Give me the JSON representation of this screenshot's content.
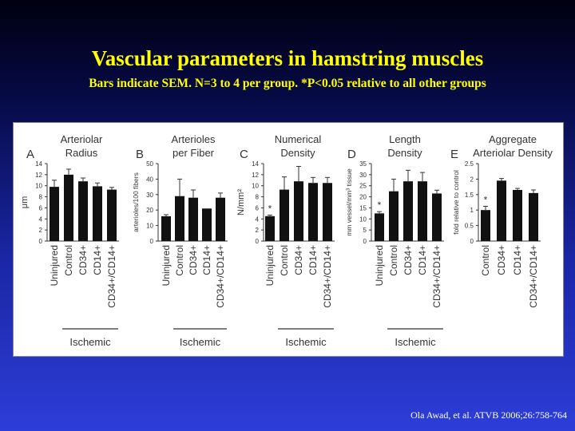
{
  "slide": {
    "title": "Vascular parameters in hamstring muscles",
    "subtitle": "Bars indicate SEM. N=3 to 4 per group. *P<0.05 relative to all other groups",
    "citation": "Ola Awad, et al.  ATVB 2006;26:758-764"
  },
  "colors": {
    "bar": "#111111",
    "title": "#ffff00",
    "background_top": "#000010",
    "background_bottom": "#2d3ed8"
  },
  "chart_data": [
    {
      "type": "bar",
      "panel": "A",
      "title_lines": [
        "Arteriolar",
        "Radius"
      ],
      "ylabel": "μm",
      "ylim": [
        0,
        14
      ],
      "yticks": [
        "0",
        "2",
        "4",
        "6",
        "8",
        "10",
        "12",
        "14"
      ],
      "categories": [
        "Uninjured",
        "Control",
        "CD34+",
        "CD14+",
        "CD34+/CD14+"
      ],
      "values": [
        9.8,
        12.0,
        10.8,
        9.9,
        9.3
      ],
      "errors": [
        1.2,
        1.0,
        0.6,
        0.6,
        0.4
      ],
      "significant": [],
      "group_label": "Ischemic",
      "group_categories": [
        "Control",
        "CD34+",
        "CD14+",
        "CD34+/CD14+"
      ]
    },
    {
      "type": "bar",
      "panel": "B",
      "title_lines": [
        "Arterioles",
        "per Fiber"
      ],
      "ylabel": "arterioles/100 fibers",
      "ylim": [
        0,
        50
      ],
      "yticks": [
        "0",
        "10",
        "20",
        "30",
        "40",
        "50"
      ],
      "categories": [
        "Uninjured",
        "Control",
        "CD34+",
        "CD14+",
        "CD34+/CD14+"
      ],
      "values": [
        16,
        29,
        28,
        21,
        28
      ],
      "errors": [
        1,
        11,
        5,
        0,
        3
      ],
      "significant": [],
      "group_label": "Ischemic",
      "group_categories": [
        "Control",
        "CD34+",
        "CD14+",
        "CD34+/CD14+"
      ]
    },
    {
      "type": "bar",
      "panel": "C",
      "title_lines": [
        "Numerical",
        "Density"
      ],
      "ylabel": "N/mm²",
      "ylim": [
        0,
        14
      ],
      "yticks": [
        "0",
        "2",
        "4",
        "6",
        "8",
        "10",
        "12",
        "14"
      ],
      "categories": [
        "Uninjured",
        "Control",
        "CD34+",
        "CD14+",
        "CD34+/CD14+"
      ],
      "values": [
        4.5,
        9.3,
        10.8,
        10.5,
        10.5
      ],
      "errors": [
        0.2,
        2.3,
        2.7,
        1.0,
        1.0
      ],
      "significant": [
        0
      ],
      "significance_marker": "*",
      "group_label": "Ischemic",
      "group_categories": [
        "Control",
        "CD34+",
        "CD14+",
        "CD34+/CD14+"
      ]
    },
    {
      "type": "bar",
      "panel": "D",
      "title_lines": [
        "Length",
        "Density"
      ],
      "ylabel": "mm vessel/mm³ tissue",
      "ylim": [
        0,
        35
      ],
      "yticks": [
        "0",
        "5",
        "10",
        "15",
        "20",
        "25",
        "30",
        "35"
      ],
      "categories": [
        "Uninjured",
        "Control",
        "CD34+",
        "CD14+",
        "CD34+/CD14+"
      ],
      "values": [
        12.5,
        22.5,
        27,
        27,
        21.5
      ],
      "errors": [
        0.8,
        5.5,
        5,
        4,
        1.5
      ],
      "significant": [
        0
      ],
      "significance_marker": "*",
      "group_label": "Ischemic",
      "group_categories": [
        "Control",
        "CD34+",
        "CD14+",
        "CD34+/CD14+"
      ]
    },
    {
      "type": "bar",
      "panel": "E",
      "title_lines": [
        "Aggregate",
        "Arteriolar Density"
      ],
      "ylabel": "fold relative to control",
      "ylim": [
        0,
        2.5
      ],
      "yticks": [
        "0",
        "0.5",
        "1",
        "1.5",
        "2",
        "2.5"
      ],
      "categories": [
        "Control",
        "CD34+",
        "CD14+",
        "CD34+/CD14+"
      ],
      "values": [
        1.0,
        1.95,
        1.65,
        1.55
      ],
      "errors": [
        0.12,
        0.07,
        0.05,
        0.1
      ],
      "significant": [
        0
      ],
      "significance_marker": "*",
      "group_label": "",
      "group_categories": []
    }
  ]
}
